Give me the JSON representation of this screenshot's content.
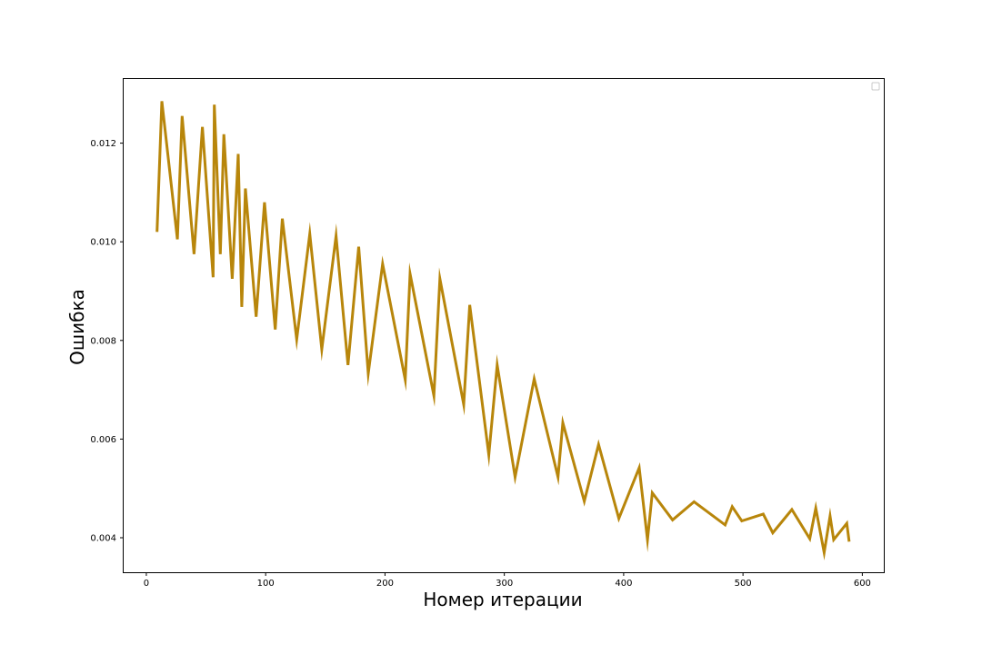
{
  "chart_data": {
    "type": "line",
    "title": "",
    "xlabel": "Номер итерации",
    "ylabel": "Ошибка",
    "xlim": [
      -19,
      618
    ],
    "ylim": [
      0.0033,
      0.0133
    ],
    "xticks": [
      0,
      100,
      200,
      300,
      400,
      500,
      600
    ],
    "yticks": [
      0.004,
      0.006,
      0.008,
      0.01,
      0.012
    ],
    "xtick_labels": [
      "0",
      "100",
      "200",
      "300",
      "400",
      "500",
      "600"
    ],
    "ytick_labels": [
      "0.004",
      "0.006",
      "0.008",
      "0.010",
      "0.012"
    ],
    "grid": false,
    "legend": "top-right, empty",
    "series": [
      {
        "color": "#b8860b",
        "x": [
          9,
          13,
          26,
          30,
          40,
          47,
          56,
          57,
          62,
          65,
          72,
          77,
          80,
          83,
          92,
          99,
          108,
          114,
          126,
          137,
          147,
          159,
          169,
          178,
          186,
          198,
          217,
          221,
          241,
          246,
          266,
          271,
          287,
          294,
          309,
          325,
          345,
          349,
          367,
          379,
          396,
          413,
          420,
          424,
          441,
          459,
          485,
          491,
          499,
          517,
          525,
          541,
          556,
          561,
          568,
          573,
          576,
          587,
          589
        ],
        "y": [
          0.0102,
          0.01285,
          0.01005,
          0.01255,
          0.00975,
          0.01233,
          0.00928,
          0.01278,
          0.00975,
          0.01218,
          0.00925,
          0.01178,
          0.00868,
          0.01108,
          0.00848,
          0.0108,
          0.00822,
          0.01047,
          0.00802,
          0.01016,
          0.00782,
          0.01012,
          0.0075,
          0.0099,
          0.00733,
          0.00955,
          0.0072,
          0.00935,
          0.00688,
          0.00925,
          0.0067,
          0.00872,
          0.00568,
          0.0075,
          0.00523,
          0.00722,
          0.00523,
          0.00633,
          0.00474,
          0.00589,
          0.00439,
          0.00542,
          0.00396,
          0.00491,
          0.00436,
          0.00473,
          0.00426,
          0.00463,
          0.00434,
          0.00448,
          0.0041,
          0.00457,
          0.00398,
          0.0046,
          0.0037,
          0.00444,
          0.00396,
          0.00429,
          0.00392
        ]
      }
    ]
  }
}
